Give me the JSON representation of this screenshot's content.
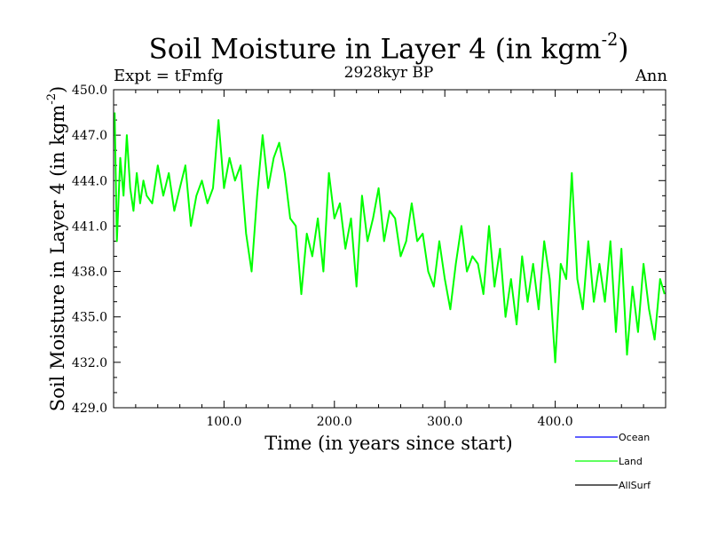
{
  "chart_data": {
    "type": "line",
    "title": "Soil Moisture in Layer 4 (in kgm",
    "title_sup": "-2",
    "title_close": ")",
    "subtitle": "2928kyr BP",
    "experiment": "Expt = tFmfg",
    "season": "Ann",
    "xlabel": "Time (in years since start)",
    "ylabel": "Soil Moisture in Layer 4 (in kgm",
    "ylabel_sup": "-2",
    "ylabel_close": ")",
    "xlim": [
      0,
      500
    ],
    "ylim": [
      429,
      450
    ],
    "x_ticks": [
      100,
      200,
      300,
      400
    ],
    "x_tick_labels": [
      "100.0",
      "200.0",
      "300.0",
      "400.0"
    ],
    "y_ticks": [
      429,
      432,
      435,
      438,
      441,
      444,
      447,
      450
    ],
    "y_tick_labels": [
      "429.0",
      "432.0",
      "435.0",
      "438.0",
      "441.0",
      "444.0",
      "447.0",
      "450.0"
    ],
    "legend": [
      {
        "name": "Ocean",
        "color": "#0000ff"
      },
      {
        "name": "Land",
        "color": "#00ff00"
      },
      {
        "name": "AllSurf",
        "color": "#000000"
      }
    ],
    "series": [
      {
        "name": "Land",
        "color": "#00ff00",
        "x": [
          1,
          3,
          6,
          9,
          12,
          15,
          18,
          21,
          24,
          27,
          30,
          35,
          40,
          45,
          50,
          55,
          60,
          65,
          70,
          75,
          80,
          85,
          90,
          95,
          100,
          105,
          110,
          115,
          120,
          125,
          130,
          135,
          140,
          145,
          150,
          155,
          160,
          165,
          170,
          175,
          180,
          185,
          190,
          195,
          200,
          205,
          210,
          215,
          220,
          225,
          230,
          235,
          240,
          245,
          250,
          255,
          260,
          265,
          270,
          275,
          280,
          285,
          290,
          295,
          300,
          305,
          310,
          315,
          320,
          325,
          330,
          335,
          340,
          345,
          350,
          355,
          360,
          365,
          370,
          375,
          380,
          385,
          390,
          395,
          400,
          405,
          410,
          415,
          420,
          425,
          430,
          435,
          440,
          445,
          450,
          455,
          460,
          465,
          470,
          475,
          480,
          485,
          490,
          495,
          499
        ],
        "values": [
          448.5,
          440.0,
          445.5,
          443.0,
          447.0,
          443.5,
          442.0,
          444.5,
          442.5,
          444.0,
          443.0,
          442.5,
          445.0,
          443.0,
          444.5,
          442.0,
          443.5,
          445.0,
          441.0,
          443.0,
          444.0,
          442.5,
          443.5,
          448.0,
          443.5,
          445.5,
          444.0,
          445.0,
          440.5,
          438.0,
          443.0,
          447.0,
          443.5,
          445.5,
          446.5,
          444.5,
          441.5,
          441.0,
          436.5,
          440.5,
          439.0,
          441.5,
          438.0,
          444.5,
          441.5,
          442.5,
          439.5,
          441.5,
          437.0,
          443.0,
          440.0,
          441.5,
          443.5,
          440.0,
          442.0,
          441.5,
          439.0,
          440.0,
          442.5,
          440.0,
          440.5,
          438.0,
          437.0,
          440.0,
          437.5,
          435.5,
          438.5,
          441.0,
          438.0,
          439.0,
          438.5,
          436.5,
          441.0,
          437.0,
          439.5,
          435.0,
          437.5,
          434.5,
          439.0,
          436.0,
          438.5,
          435.5,
          440.0,
          437.5,
          432.0,
          438.5,
          437.5,
          444.5,
          437.5,
          435.5,
          440.0,
          436.0,
          438.5,
          436.0,
          440.0,
          434.0,
          439.5,
          432.5,
          437.0,
          434.0,
          438.5,
          435.5,
          433.5,
          437.5,
          436.5
        ]
      }
    ]
  }
}
